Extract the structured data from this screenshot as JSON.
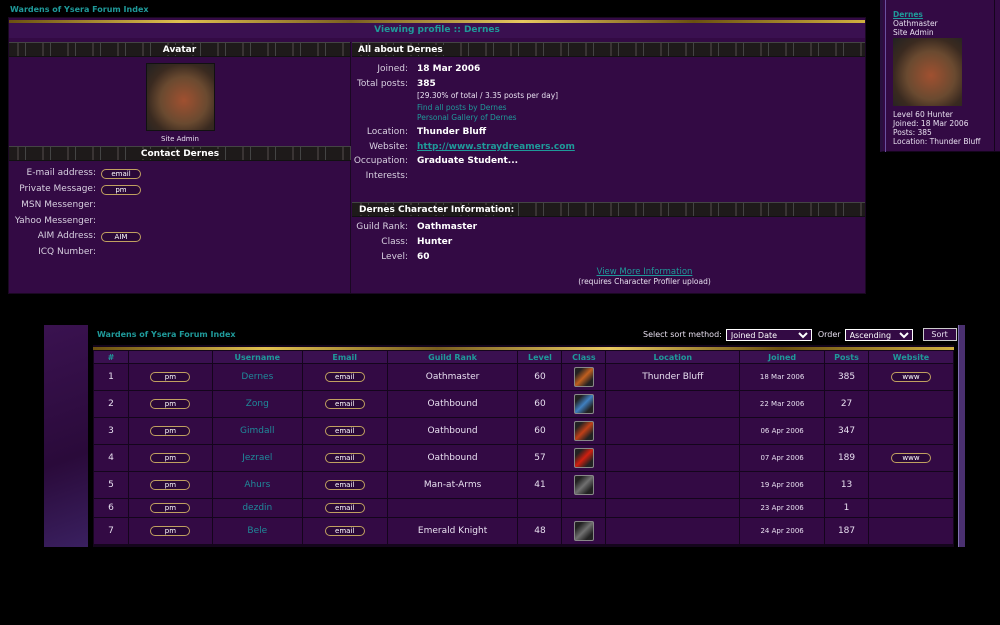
{
  "forum_title": "Wardens of Ysera Forum Index",
  "profile": {
    "header": "Viewing profile :: Dernes",
    "avatar_header": "Avatar",
    "rank_label": "Site Admin",
    "contact_header": "Contact Dernes",
    "contact": [
      {
        "label": "E-mail address:",
        "button": "email"
      },
      {
        "label": "Private Message:",
        "button": "pm"
      },
      {
        "label": "MSN Messenger:",
        "button": ""
      },
      {
        "label": "Yahoo Messenger:",
        "button": ""
      },
      {
        "label": "AIM Address:",
        "button": "AIM"
      },
      {
        "label": "ICQ Number:",
        "button": ""
      }
    ],
    "about_header": "All about Dernes",
    "joined_label": "Joined:",
    "joined": "18 Mar 2006",
    "posts_label": "Total posts:",
    "posts": "385",
    "posts_detail": "[29.30% of total / 3.35 posts per day]",
    "find_posts": "Find all posts by Dernes",
    "gallery": "Personal Gallery of Dernes",
    "location_label": "Location:",
    "location": "Thunder Bluff",
    "website_label": "Website:",
    "website": "http://www.straydreamers.com",
    "occupation_label": "Occupation:",
    "occupation": "Graduate Student...",
    "interests_label": "Interests:",
    "interests": "",
    "char_header": "Dernes Character Information:",
    "guild_rank_label": "Guild Rank:",
    "guild_rank": "Oathmaster",
    "class_label": "Class:",
    "class": "Hunter",
    "level_label": "Level:",
    "level": "60",
    "view_more": "View More Information",
    "requires": "(requires Character Profiler upload)"
  },
  "post_card": {
    "name": "Dernes",
    "rank": "Oathmaster",
    "title": "Site Admin",
    "level_class": "Level 60 Hunter",
    "joined": "Joined: 18 Mar 2006",
    "posts": "Posts: 385",
    "location": "Location: Thunder Bluff"
  },
  "memberlist": {
    "title": "Wardens of Ysera Forum Index",
    "sort_label": "Select sort method:",
    "sort_value": "Joined Date",
    "order_label": "Order",
    "order_value": "Ascending",
    "sort_button": "Sort",
    "columns": [
      "#",
      "",
      "Username",
      "Email",
      "Guild Rank",
      "Level",
      "Class",
      "Location",
      "Joined",
      "Posts",
      "Website"
    ],
    "rows": [
      {
        "n": "1",
        "pm": "pm",
        "user": "Dernes",
        "email": "email",
        "rank": "Oathmaster",
        "level": "60",
        "class_icon": "hunter",
        "icon_color": "#c06020",
        "location": "Thunder Bluff",
        "joined": "18 Mar 2006",
        "posts": "385",
        "www": "www"
      },
      {
        "n": "2",
        "pm": "pm",
        "user": "Zong",
        "email": "email",
        "rank": "Oathbound",
        "level": "60",
        "class_icon": "warrior",
        "icon_color": "#4080c0",
        "location": "",
        "joined": "22 Mar 2006",
        "posts": "27",
        "www": ""
      },
      {
        "n": "3",
        "pm": "pm",
        "user": "Gimdall",
        "email": "email",
        "rank": "Oathbound",
        "level": "60",
        "class_icon": "paladin",
        "icon_color": "#c04018",
        "location": "",
        "joined": "06 Apr 2006",
        "posts": "347",
        "www": ""
      },
      {
        "n": "4",
        "pm": "pm",
        "user": "Jezrael",
        "email": "email",
        "rank": "Oathbound",
        "level": "57",
        "class_icon": "rogue",
        "icon_color": "#d02010",
        "location": "",
        "joined": "07 Apr 2006",
        "posts": "189",
        "www": "www"
      },
      {
        "n": "5",
        "pm": "pm",
        "user": "Ahurs",
        "email": "email",
        "rank": "Man-at-Arms",
        "level": "41",
        "class_icon": "druid",
        "icon_color": "#707070",
        "location": "",
        "joined": "19 Apr 2006",
        "posts": "13",
        "www": ""
      },
      {
        "n": "6",
        "pm": "pm",
        "user": "dezdin",
        "email": "email",
        "rank": "",
        "level": "",
        "class_icon": "",
        "icon_color": "",
        "location": "",
        "joined": "23 Apr 2006",
        "posts": "1",
        "www": ""
      },
      {
        "n": "7",
        "pm": "pm",
        "user": "Bele",
        "email": "email",
        "rank": "Emerald Knight",
        "level": "48",
        "class_icon": "druid",
        "icon_color": "#707070",
        "location": "",
        "joined": "24 Apr 2006",
        "posts": "187",
        "www": ""
      }
    ]
  }
}
